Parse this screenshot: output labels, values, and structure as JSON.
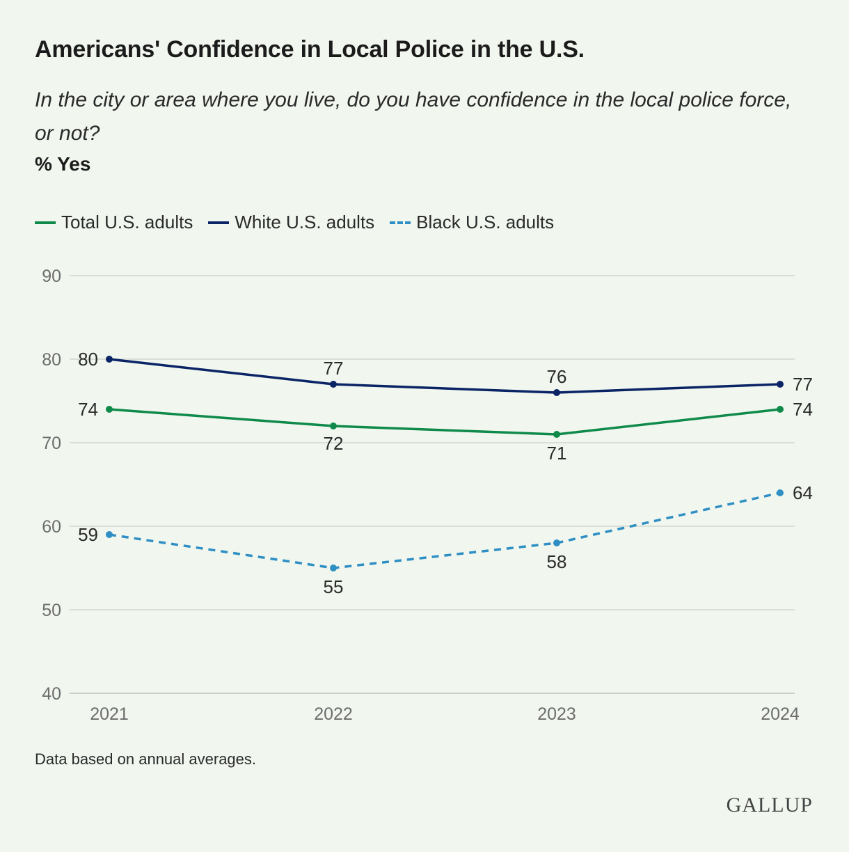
{
  "chart_data": {
    "type": "line",
    "title": "Americans' Confidence in Local Police in the U.S.",
    "subtitle": "In the city or area where you live, do you have confidence in the local police force, or not?",
    "ylabel": "% Yes",
    "ylim": [
      40,
      90
    ],
    "yticks": [
      "40",
      "50",
      "60",
      "70",
      "80",
      "90"
    ],
    "categories": [
      "2021",
      "2022",
      "2023",
      "2024"
    ],
    "legend_position": "top-left",
    "grid": true,
    "series": [
      {
        "name": "Total U.S. adults",
        "values": [
          74,
          72,
          71,
          74
        ],
        "color": "#0f8a4a",
        "style": "solid"
      },
      {
        "name": "White U.S. adults",
        "values": [
          80,
          77,
          76,
          77
        ],
        "color": "#0b2466",
        "style": "solid"
      },
      {
        "name": "Black U.S. adults",
        "values": [
          59,
          55,
          58,
          64
        ],
        "color": "#2f8fc4",
        "style": "dashed"
      }
    ],
    "note": "Data based on annual averages."
  },
  "brand": {
    "logo_text": "GALLUP"
  }
}
